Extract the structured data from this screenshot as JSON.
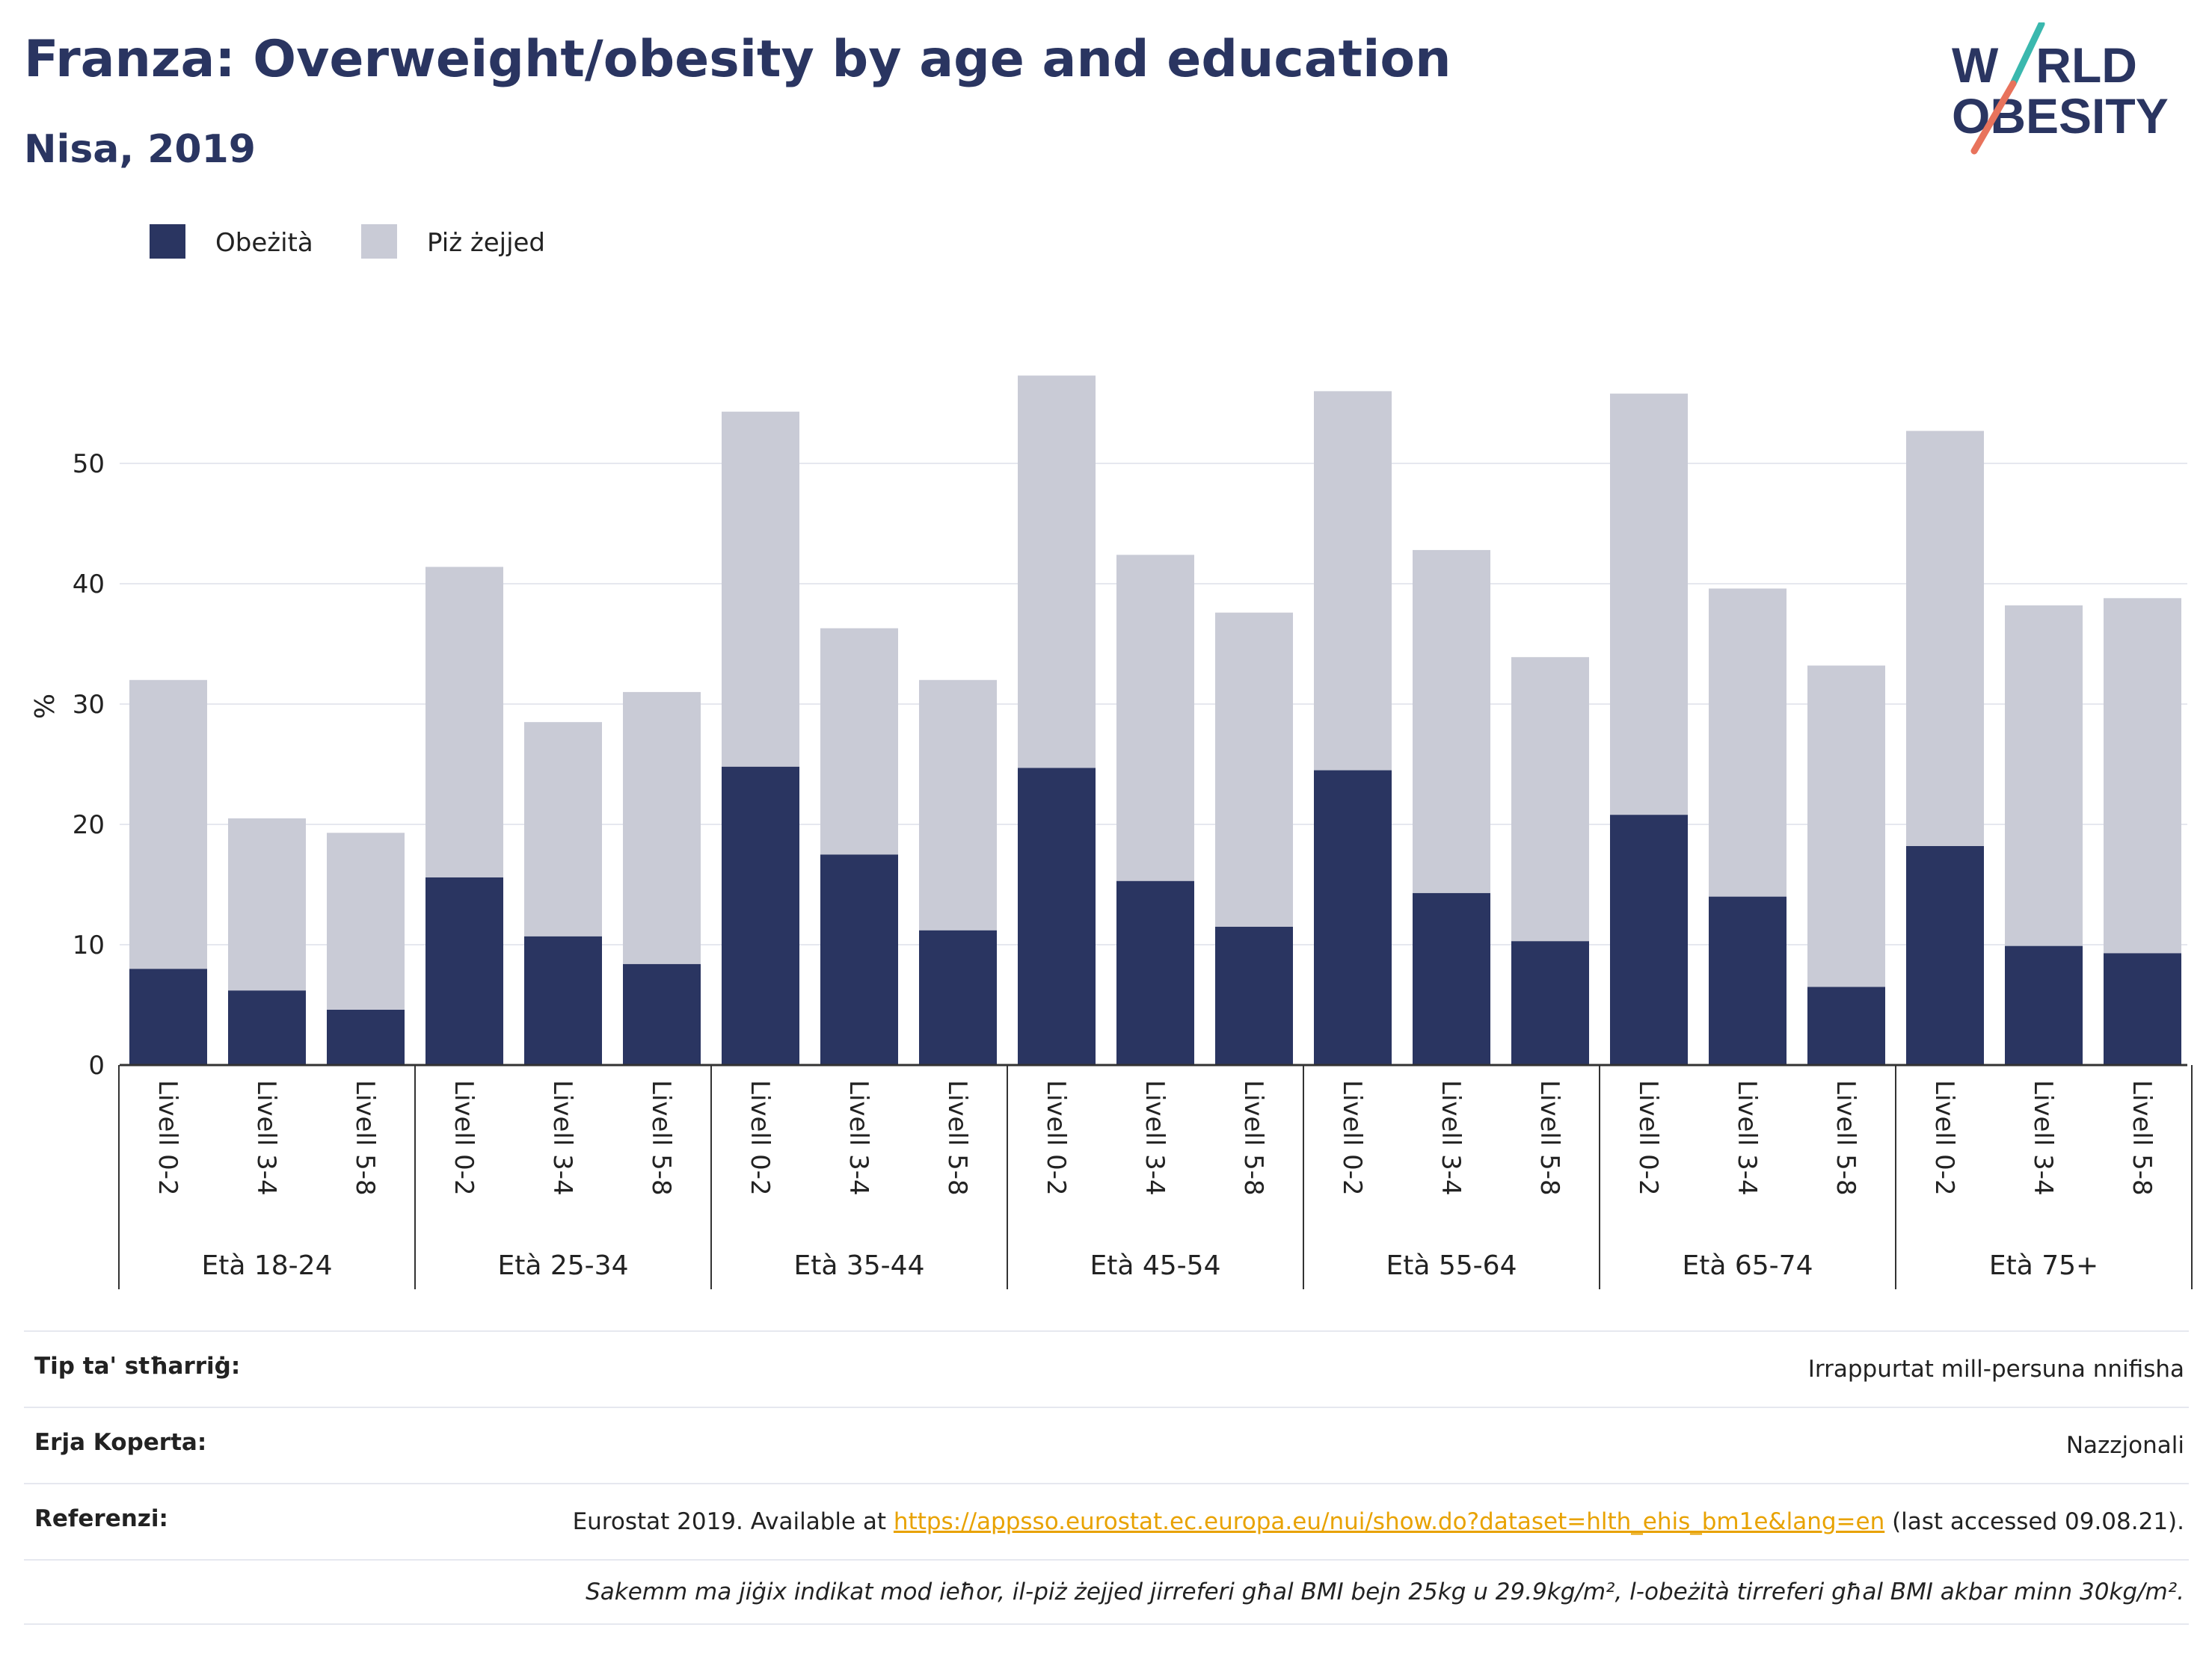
{
  "header": {
    "title": "Franza: Overweight/obesity by age and education",
    "subtitle": "Nisa, 2019"
  },
  "logo": {
    "line1_left": "W",
    "line1_right": "RLD",
    "line2_left": "O",
    "line2_right": "BESITY",
    "text_color": "#2a3561",
    "slash_top_color": "#3ab8ae",
    "slash_bottom_color": "#e8735c"
  },
  "chart_data": {
    "type": "bar",
    "stacked": true,
    "ylabel": "%",
    "ylim": [
      0,
      60
    ],
    "yticks": [
      0,
      10,
      20,
      30,
      40,
      50
    ],
    "grid": true,
    "legend_position": "top-left",
    "groups": [
      "Età 18-24",
      "Età 25-34",
      "Età 35-44",
      "Età 45-54",
      "Età 55-64",
      "Età 65-74",
      "Età 75+"
    ],
    "subcategories": [
      "Livell 0-2",
      "Livell 3-4",
      "Livell 5-8"
    ],
    "series": [
      {
        "name": "Obeżità",
        "color": "#2a3561",
        "values": [
          8.0,
          6.2,
          4.6,
          15.6,
          10.7,
          8.4,
          24.8,
          17.5,
          11.2,
          24.7,
          15.3,
          11.5,
          24.5,
          14.3,
          10.3,
          20.8,
          14.0,
          6.5,
          18.2,
          9.9,
          9.3
        ]
      },
      {
        "name": "Piż żejjed",
        "color": "#c9cbd6",
        "values": [
          24.0,
          14.3,
          14.7,
          25.8,
          17.8,
          22.6,
          29.5,
          18.8,
          20.8,
          32.6,
          27.1,
          26.1,
          31.5,
          28.5,
          23.6,
          35.0,
          25.6,
          26.7,
          34.5,
          28.3,
          29.5
        ]
      }
    ]
  },
  "info": {
    "rows": [
      {
        "label": "Tip ta' stħarriġ:",
        "value": "Irrappurtat mill-persuna nnifisha"
      },
      {
        "label": "Erja Koperta:",
        "value": "Nazzjonali"
      }
    ],
    "reference": {
      "label": "Referenzi:",
      "prefix": "Eurostat 2019. Available at ",
      "link": "https://appsso.eurostat.ec.europa.eu/nui/show.do?dataset=hlth_ehis_bm1e&lang=en",
      "suffix": " (last accessed 09.08.21)."
    },
    "note": "Sakemm ma jiġix indikat mod ieħor, il-piż żejjed jirreferi għal BMI bejn 25kg u 29.9kg/m², l-obeżità tirreferi għal BMI akbar minn 30kg/m²."
  }
}
